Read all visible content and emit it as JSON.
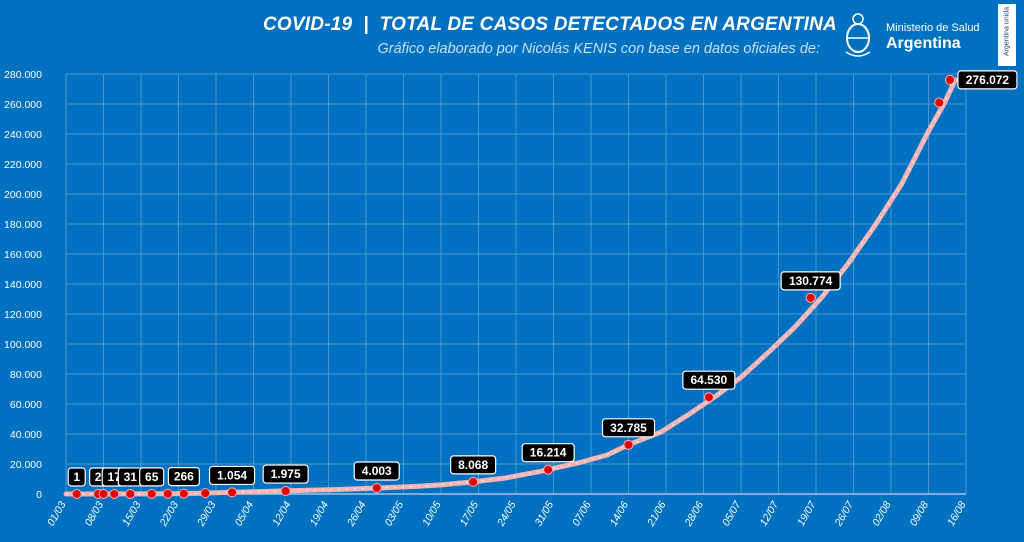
{
  "header": {
    "title": "COVID-19  |  TOTAL DE CASOS DETECTADOS EN ARGENTINA",
    "subtitle": "Gráfico elaborado por Nicolás KENIS con base en datos oficiales de:"
  },
  "logo": {
    "ministry": "Ministerio de Salud",
    "country": "Argentina",
    "side_tab": "Argentina unida"
  },
  "colors": {
    "background": "#0070c0",
    "line": "#f2b5b5",
    "marker": "#e00000",
    "label_bg": "#000000",
    "label_text": "#ffffff",
    "grid": "#4e93d0"
  },
  "chart_data": {
    "type": "line",
    "title": "COVID-19  |  TOTAL DE CASOS DETECTADOS EN ARGENTINA",
    "xlabel": "",
    "ylabel": "",
    "ylim": [
      0,
      280000
    ],
    "yticks": [
      0,
      20000,
      40000,
      60000,
      80000,
      100000,
      120000,
      140000,
      160000,
      180000,
      200000,
      220000,
      240000,
      260000,
      280000
    ],
    "ytick_labels": [
      "0",
      "20.000",
      "40.000",
      "60.000",
      "80.000",
      "100.000",
      "120.000",
      "140.000",
      "160.000",
      "180.000",
      "200.000",
      "220.000",
      "240.000",
      "260.000",
      "280.000"
    ],
    "xlim": [
      "2020-03-01",
      "2020-08-16"
    ],
    "xticks": [
      "2020-03-01",
      "2020-03-08",
      "2020-03-15",
      "2020-03-22",
      "2020-03-29",
      "2020-04-05",
      "2020-04-12",
      "2020-04-19",
      "2020-04-26",
      "2020-05-03",
      "2020-05-10",
      "2020-05-17",
      "2020-05-24",
      "2020-05-31",
      "2020-06-07",
      "2020-06-14",
      "2020-06-21",
      "2020-06-28",
      "2020-07-05",
      "2020-07-12",
      "2020-07-19",
      "2020-07-26",
      "2020-08-02",
      "2020-08-09",
      "2020-08-16"
    ],
    "xtick_labels": [
      "01/03",
      "08/03",
      "15/03",
      "22/03",
      "29/03",
      "05/04",
      "12/04",
      "19/04",
      "26/04",
      "03/05",
      "10/05",
      "17/05",
      "24/05",
      "31/05",
      "07/06",
      "14/06",
      "21/06",
      "28/06",
      "05/07",
      "12/07",
      "19/07",
      "26/07",
      "02/08",
      "09/08",
      "16/08"
    ],
    "grid": true,
    "series": [
      {
        "points": [
          {
            "x": "2020-03-01",
            "y": 0
          },
          {
            "x": "2020-03-03",
            "y": 1
          },
          {
            "x": "2020-03-08",
            "y": 12
          },
          {
            "x": "2020-03-15",
            "y": 45
          },
          {
            "x": "2020-03-20",
            "y": 158
          },
          {
            "x": "2020-03-25",
            "y": 387
          },
          {
            "x": "2020-03-31",
            "y": 1054
          },
          {
            "x": "2020-04-05",
            "y": 1451
          },
          {
            "x": "2020-04-10",
            "y": 1975
          },
          {
            "x": "2020-04-15",
            "y": 2443
          },
          {
            "x": "2020-04-20",
            "y": 2941
          },
          {
            "x": "2020-04-25",
            "y": 3607
          },
          {
            "x": "2020-04-28",
            "y": 4003
          },
          {
            "x": "2020-05-05",
            "y": 5020
          },
          {
            "x": "2020-05-10",
            "y": 6034
          },
          {
            "x": "2020-05-16",
            "y": 8068
          },
          {
            "x": "2020-05-22",
            "y": 10649
          },
          {
            "x": "2020-05-28",
            "y": 14702
          },
          {
            "x": "2020-05-30",
            "y": 16214
          },
          {
            "x": "2020-06-05",
            "y": 21037
          },
          {
            "x": "2020-06-10",
            "y": 25987
          },
          {
            "x": "2020-06-14",
            "y": 32785
          },
          {
            "x": "2020-06-20",
            "y": 41204
          },
          {
            "x": "2020-06-25",
            "y": 52457
          },
          {
            "x": "2020-06-30",
            "y": 64530
          },
          {
            "x": "2020-07-05",
            "y": 77815
          },
          {
            "x": "2020-07-10",
            "y": 94060
          },
          {
            "x": "2020-07-15",
            "y": 111160
          },
          {
            "x": "2020-07-20",
            "y": 130774
          },
          {
            "x": "2020-07-25",
            "y": 153520
          },
          {
            "x": "2020-07-30",
            "y": 178996
          },
          {
            "x": "2020-08-04",
            "y": 206743
          },
          {
            "x": "2020-08-09",
            "y": 241811
          },
          {
            "x": "2020-08-12",
            "y": 260911
          },
          {
            "x": "2020-08-14",
            "y": 276072
          }
        ]
      }
    ],
    "markers": [
      {
        "x": "2020-03-03",
        "y": 1
      },
      {
        "x": "2020-03-07",
        "y": 2
      },
      {
        "x": "2020-03-08",
        "y": 12
      },
      {
        "x": "2020-03-10",
        "y": 17
      },
      {
        "x": "2020-03-13",
        "y": 31
      },
      {
        "x": "2020-03-17",
        "y": 65
      },
      {
        "x": "2020-03-20",
        "y": 158
      },
      {
        "x": "2020-03-23",
        "y": 266
      },
      {
        "x": "2020-03-27",
        "y": 589
      },
      {
        "x": "2020-04-01",
        "y": 1054
      },
      {
        "x": "2020-04-11",
        "y": 1975
      },
      {
        "x": "2020-04-28",
        "y": 4003
      },
      {
        "x": "2020-05-16",
        "y": 8068
      },
      {
        "x": "2020-05-30",
        "y": 16214
      },
      {
        "x": "2020-06-14",
        "y": 32785
      },
      {
        "x": "2020-06-29",
        "y": 64530
      },
      {
        "x": "2020-07-18",
        "y": 130774
      },
      {
        "x": "2020-08-11",
        "y": 260911
      },
      {
        "x": "2020-08-13",
        "y": 276072
      }
    ],
    "annotations": [
      {
        "x": "2020-03-03",
        "y": 1,
        "label": "1"
      },
      {
        "x": "2020-03-07",
        "y": 2,
        "label": "2"
      },
      {
        "x": "2020-03-10",
        "y": 17,
        "label": "17"
      },
      {
        "x": "2020-03-13",
        "y": 31,
        "label": "31"
      },
      {
        "x": "2020-03-17",
        "y": 65,
        "label": "65"
      },
      {
        "x": "2020-03-23",
        "y": 266,
        "label": "266"
      },
      {
        "x": "2020-04-01",
        "y": 1054,
        "label": "1.054"
      },
      {
        "x": "2020-04-11",
        "y": 1975,
        "label": "1.975"
      },
      {
        "x": "2020-04-28",
        "y": 4003,
        "label": "4.003"
      },
      {
        "x": "2020-05-16",
        "y": 8068,
        "label": "8.068"
      },
      {
        "x": "2020-05-30",
        "y": 16214,
        "label": "16.214"
      },
      {
        "x": "2020-06-14",
        "y": 32785,
        "label": "32.785"
      },
      {
        "x": "2020-06-29",
        "y": 64530,
        "label": "64.530"
      },
      {
        "x": "2020-07-18",
        "y": 130774,
        "label": "130.774"
      },
      {
        "x": "2020-08-13",
        "y": 276072,
        "label": "276.072"
      }
    ]
  }
}
